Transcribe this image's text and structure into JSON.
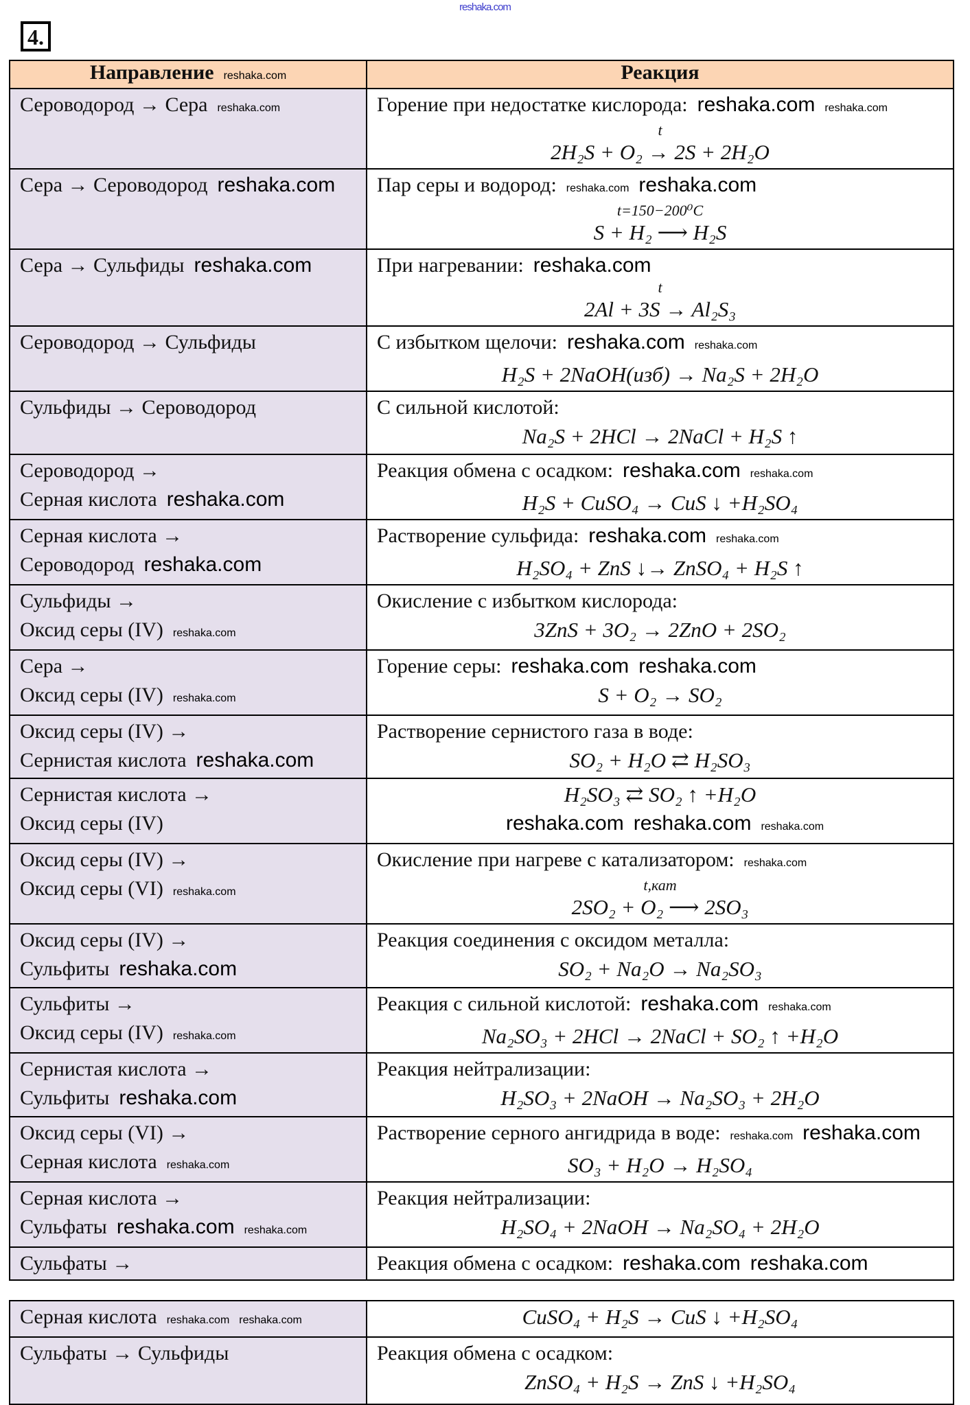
{
  "watermark": "reshaka.com",
  "task_number": "4.",
  "headers": {
    "direction": "Направление",
    "reaction": "Реакция"
  },
  "rows": [
    {
      "direction": [
        "Сероводород → Сера"
      ],
      "label": "Горение при недостатке кислорода:",
      "over": "t",
      "formula": "2H₂S + O₂ → 2S + 2H₂O"
    },
    {
      "direction": [
        "Сера → Сероводород"
      ],
      "label": "Пар серы и водород:",
      "over": "t=150−200⁰C",
      "formula": "S + H₂ ⟶ H₂S"
    },
    {
      "direction": [
        "Сера → Сульфиды"
      ],
      "label": "При нагревании:",
      "over": "t",
      "formula": "2Al + 3S → Al₂S₃"
    },
    {
      "direction": [
        "Сероводород → Сульфиды"
      ],
      "label": "С избытком щелочи:",
      "over": "",
      "formula": "H₂S + 2NaOH(изб) → Na₂S + 2H₂O"
    },
    {
      "direction": [
        "Сульфиды → Сероводород"
      ],
      "label": "С сильной кислотой:",
      "over": "",
      "formula": "Na₂S + 2HCl → 2NaCl + H₂S ↑"
    },
    {
      "direction": [
        "Сероводород →",
        "Серная кислота"
      ],
      "label": "Реакция обмена с осадком:",
      "over": "",
      "formula": "H₂S + CuSO₄ → CuS ↓ +H₂SO₄"
    },
    {
      "direction": [
        "Серная кислота →",
        "Сероводород"
      ],
      "label": "Растворение сульфида:",
      "over": "",
      "formula": "H₂SO₄ + ZnS ↓→ ZnSO₄ + H₂S ↑"
    },
    {
      "direction": [
        "Сульфиды →",
        "Оксид серы (IV)"
      ],
      "label": "Окисление с избытком кислорода:",
      "over": "",
      "formula": "3ZnS + 3O₂ → 2ZnO + 2SO₂"
    },
    {
      "direction": [
        "Сера →",
        "Оксид серы (IV)"
      ],
      "label": "Горение серы:",
      "over": "",
      "formula": "S + O₂ → SO₂"
    },
    {
      "direction": [
        "Оксид серы (IV) →",
        "Сернистая кислота"
      ],
      "label": "Растворение сернистого газа в воде:",
      "over": "",
      "formula": "SO₂ + H₂O ⇄ H₂SO₃"
    },
    {
      "direction": [
        "Сернистая кислота →",
        "Оксид серы (IV)"
      ],
      "label": "",
      "over": "",
      "formula": "H₂SO₃ ⇄ SO₂ ↑ +H₂O"
    },
    {
      "direction": [
        "Оксид серы (IV) →",
        "Оксид серы (VI)"
      ],
      "label": "Окисление при нагреве с катализатором:",
      "over": "t,кат",
      "formula": "2SO₂ + O₂ ⟶ 2SO₃"
    },
    {
      "direction": [
        "Оксид серы (IV) →",
        "Сульфиты"
      ],
      "label": "Реакция соединения с оксидом металла:",
      "over": "",
      "formula": "SO₂ + Na₂O → Na₂SO₃"
    },
    {
      "direction": [
        "Сульфиты →",
        "Оксид серы (IV)"
      ],
      "label": "Реакция с сильной кислотой:",
      "over": "",
      "formula": "Na₂SO₃ + 2HCl → 2NaCl + SO₂ ↑ +H₂O"
    },
    {
      "direction": [
        "Сернистая кислота →",
        "Сульфиты"
      ],
      "label": "Реакция нейтрализации:",
      "over": "",
      "formula": "H₂SO₃ + 2NaOH → Na₂SO₃ + 2H₂O"
    },
    {
      "direction": [
        "Оксид серы (VI) →",
        "Серная кислота"
      ],
      "label": "Растворение серного ангидрида в воде:",
      "over": "",
      "formula": "SO₃ + H₂O → H₂SO₄"
    },
    {
      "direction": [
        "Серная кислота →",
        "Сульфаты"
      ],
      "label": "Реакция нейтрализации:",
      "over": "",
      "formula": "H₂SO₄ + 2NaOH → Na₂SO₄ + 2H₂O"
    },
    {
      "direction": [
        "Сульфаты →"
      ],
      "label": "Реакция обмена с осадком:",
      "over": "",
      "formula": ""
    }
  ],
  "rows2": [
    {
      "direction": [
        "Серная кислота"
      ],
      "label": "",
      "over": "",
      "formula": "CuSO₄ + H₂S → CuS ↓ +H₂SO₄"
    },
    {
      "direction": [
        "Сульфаты → Сульфиды"
      ],
      "label": "Реакция обмена с осадком:",
      "over": "",
      "formula": "ZnSO₄ + H₂S → ZnS ↓ +H₂SO₄"
    }
  ]
}
